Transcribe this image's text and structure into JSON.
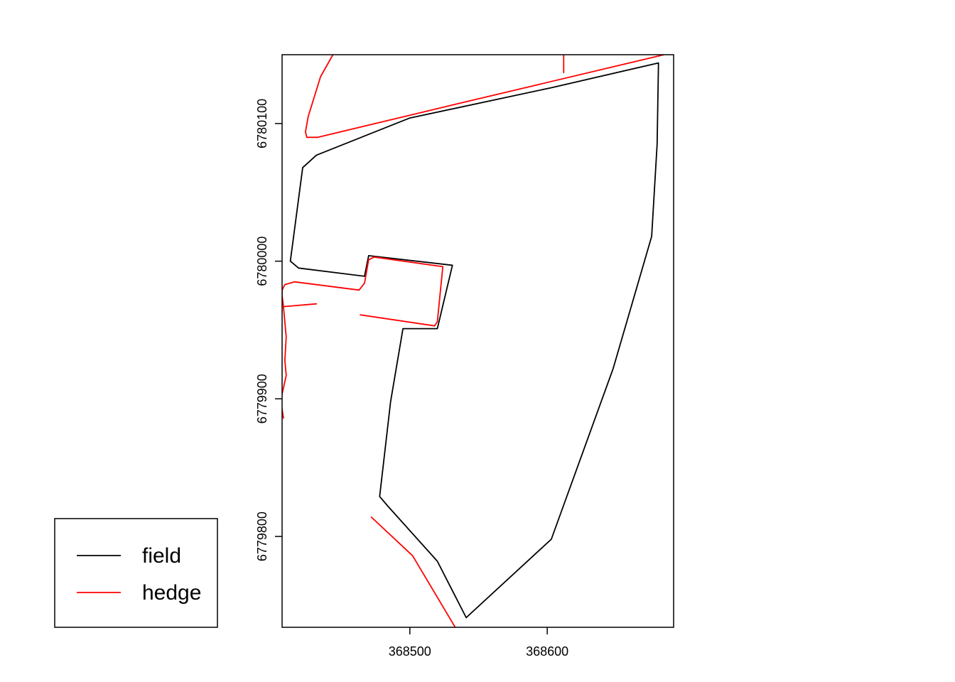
{
  "chart_data": {
    "type": "line",
    "title": "",
    "xlabel": "",
    "ylabel": "",
    "xlim": [
      368407,
      368692
    ],
    "ylim": [
      6779734,
      6780150
    ],
    "x_ticks": [
      368500,
      368600
    ],
    "x_tick_labels": [
      "368500",
      "368600"
    ],
    "y_ticks": [
      6779800,
      6779900,
      6780000,
      6780100
    ],
    "y_tick_labels": [
      "6779800",
      "6779900",
      "6780000",
      "6780100"
    ],
    "grid": false,
    "legend_position": "bottom-left",
    "series": [
      {
        "name": "field",
        "color": "#000000",
        "lines": [
          [
            [
              368413,
              6780000
            ],
            [
              368419,
              6779995
            ],
            [
              368467,
              6779989
            ],
            [
              368470,
              6780004
            ],
            [
              368531,
              6779997
            ],
            [
              368520,
              6779951
            ],
            [
              368495,
              6779951
            ],
            [
              368486,
              6779898
            ],
            [
              368478,
              6779829
            ],
            [
              368484,
              6779822
            ],
            [
              368520,
              6779782
            ],
            [
              368541,
              6779741
            ],
            [
              368603,
              6779798
            ],
            [
              368648,
              6779922
            ],
            [
              368676,
              6780018
            ],
            [
              368680,
              6780085
            ],
            [
              368681,
              6780144
            ],
            [
              368603,
              6780126
            ],
            [
              368500,
              6780104
            ],
            [
              368432,
              6780077
            ],
            [
              368422,
              6780068
            ],
            [
              368413,
              6780000
            ]
          ]
        ]
      },
      {
        "name": "hedge",
        "color": "#ff0000",
        "lines": [
          [
            [
              368408,
              6779967
            ],
            [
              368407,
              6779975
            ],
            [
              368407,
              6779979
            ],
            [
              368409,
              6779983
            ],
            [
              368416,
              6779985
            ],
            [
              368463,
              6779979
            ],
            [
              368467,
              6779984
            ],
            [
              368470,
              6780001
            ],
            [
              368474,
              6780003
            ],
            [
              368524,
              6779996
            ],
            [
              368520,
              6779956
            ],
            [
              368518,
              6779953
            ],
            [
              368464,
              6779961
            ]
          ],
          [
            [
              368408,
              6779967
            ],
            [
              368432,
              6779969
            ]
          ],
          [
            [
              368408,
              6779967
            ],
            [
              368410,
              6779945
            ],
            [
              368409,
              6779928
            ],
            [
              368410,
              6779917
            ],
            [
              368406,
              6779899
            ],
            [
              368408,
              6779886
            ]
          ],
          [
            [
              368425,
              6780090
            ],
            [
              368433,
              6780090
            ],
            [
              368529,
              6780113
            ],
            [
              368685,
              6780150
            ]
          ],
          [
            [
              368425,
              6780090
            ],
            [
              368424,
              6780094
            ],
            [
              368426,
              6780105
            ],
            [
              368435,
              6780134
            ],
            [
              368444,
              6780150
            ]
          ],
          [
            [
              368612,
              6780137
            ],
            [
              368612,
              6780150
            ]
          ],
          [
            [
              368472,
              6779814
            ],
            [
              368502,
              6779786
            ],
            [
              368533,
              6779734
            ]
          ]
        ]
      }
    ]
  }
}
